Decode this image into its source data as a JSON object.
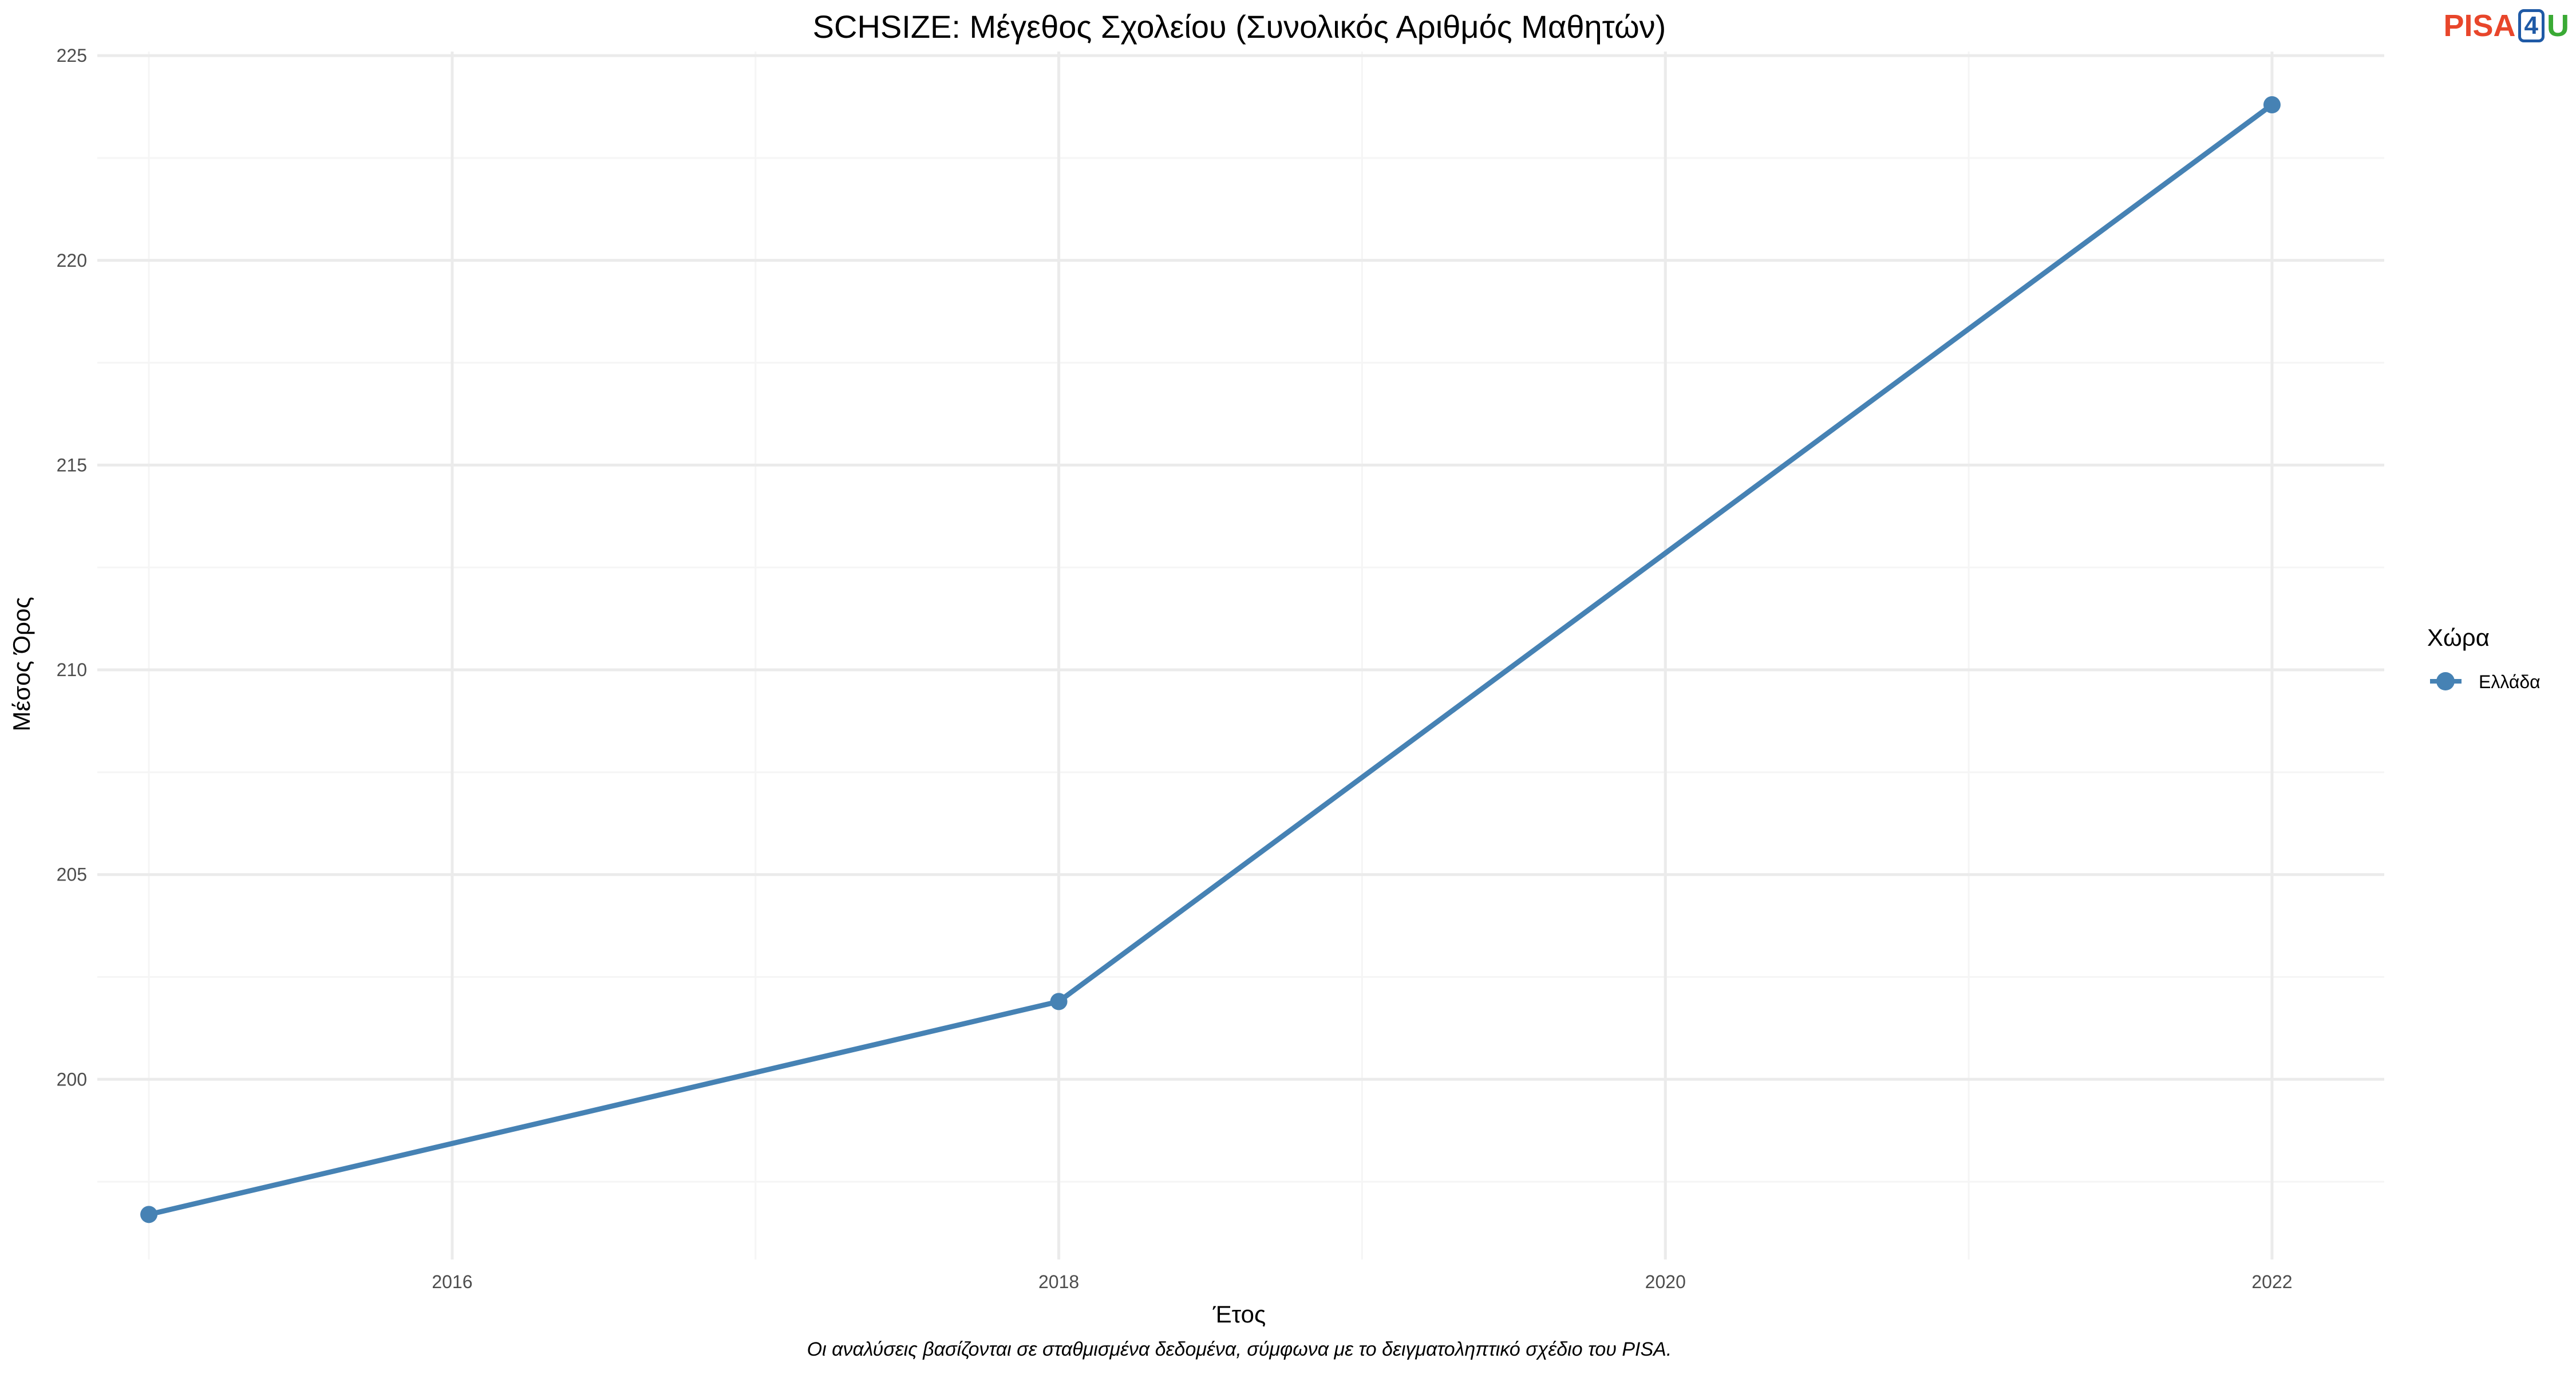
{
  "logo": {
    "part1": "PISA",
    "part2": "4",
    "part3": "U"
  },
  "caption": "Οι αναλύσεις βασίζονται σε σταθμισμένα δεδομένα, σύμφωνα με το δειγματοληπτικό σχέδιο του PISA.",
  "colors": {
    "series": "#4682b4",
    "grid_major": "#ebebeb",
    "grid_minor": "#f5f5f5"
  },
  "chart_data": {
    "type": "line",
    "title": "SCHSIZE: Μέγεθος Σχολείου (Συνολικός Αριθμός Μαθητών)",
    "xlabel": "Έτος",
    "ylabel": "Μέσος Όρος",
    "xlim": [
      2014.83,
      2022.37
    ],
    "ylim": [
      195.6,
      225.1
    ],
    "x_ticks": [
      2016,
      2018,
      2020,
      2022
    ],
    "y_ticks": [
      200,
      205,
      210,
      215,
      220,
      225
    ],
    "grid": true,
    "legend": {
      "title": "Χώρα",
      "position": "right"
    },
    "series": [
      {
        "name": "Ελλάδα",
        "x": [
          2015,
          2018,
          2022
        ],
        "y": [
          196.7,
          201.9,
          223.8
        ]
      }
    ]
  }
}
